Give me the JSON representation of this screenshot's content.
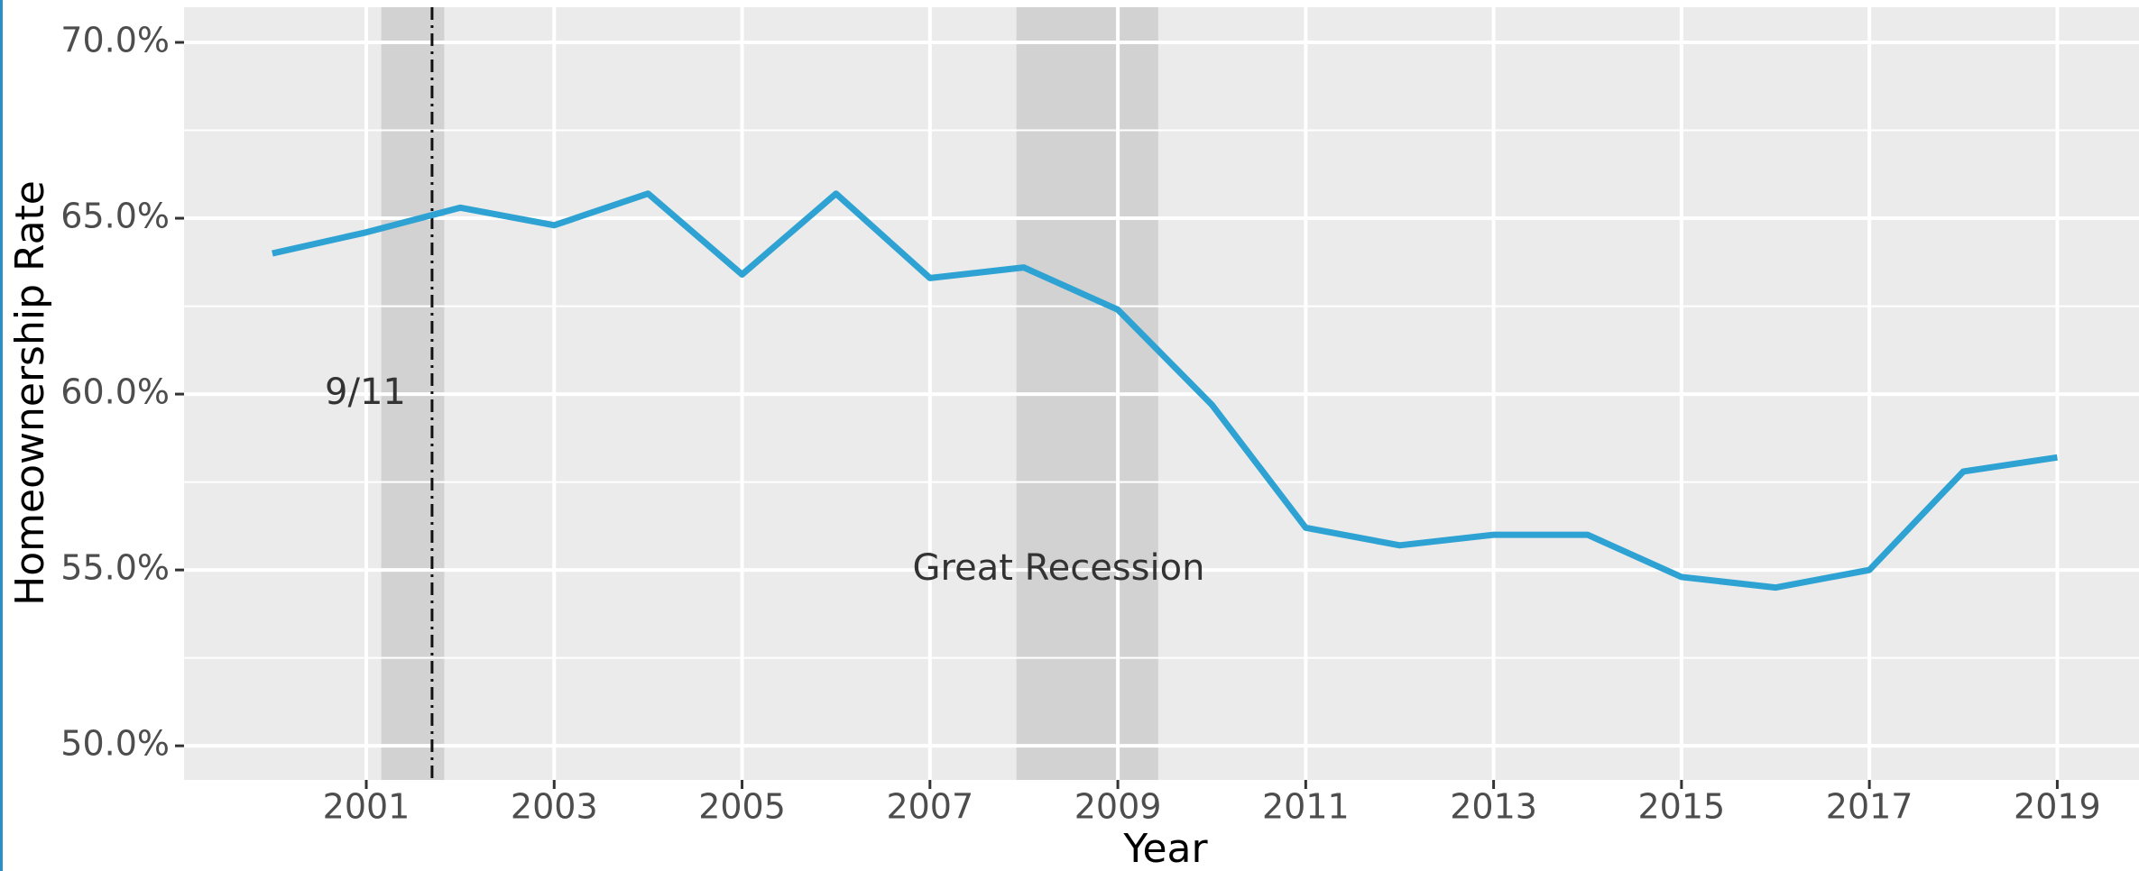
{
  "chart_data": {
    "type": "line",
    "x_label": "Year",
    "y_label": "Homeownership Rate",
    "x": [
      2000,
      2001,
      2002,
      2003,
      2004,
      2005,
      2006,
      2007,
      2008,
      2009,
      2010,
      2011,
      2012,
      2013,
      2014,
      2015,
      2016,
      2017,
      2018,
      2019
    ],
    "series": [
      {
        "color": "#2ea3d3",
        "values": [
          64.0,
          64.6,
          65.3,
          64.8,
          65.7,
          63.4,
          65.7,
          63.3,
          63.6,
          62.4,
          59.7,
          56.2,
          55.7,
          56.0,
          56.0,
          54.8,
          54.5,
          55.0,
          57.8,
          58.2
        ]
      }
    ],
    "xlim": [
      1999.06,
      2019.87
    ],
    "ylim": [
      49.03,
      71.0
    ],
    "xticks": [
      2001,
      2003,
      2005,
      2007,
      2009,
      2011,
      2013,
      2015,
      2017,
      2019
    ],
    "yticks": [
      {
        "value": 50,
        "label": "50.0%"
      },
      {
        "value": 55,
        "label": "55.0%"
      },
      {
        "value": 60,
        "label": "60.0%"
      },
      {
        "value": 65,
        "label": "65.0%"
      },
      {
        "value": 70,
        "label": "70.0%"
      }
    ],
    "y_minor_ticks": [
      52.5,
      57.5,
      62.5,
      67.5
    ],
    "grid": true,
    "shaded_regions": [
      {
        "x": [
          2001.16,
          2001.83
        ]
      },
      {
        "x": [
          2007.92,
          2009.43
        ]
      }
    ],
    "vlines": [
      {
        "x": 2001.7
      }
    ],
    "annotations": [
      {
        "text": "9/11",
        "x": 2000.99,
        "y": 60.0
      },
      {
        "text": "Great Recession",
        "x": 2008.37,
        "y": 55.0
      }
    ]
  }
}
